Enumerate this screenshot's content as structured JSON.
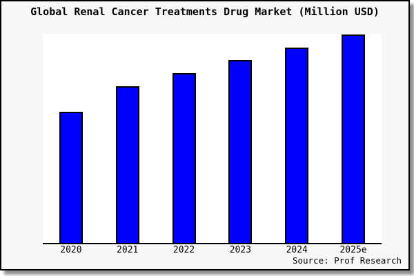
{
  "chart": {
    "title": "Global Renal Cancer Treatments Drug Market (Million USD)",
    "source_note": "Source: Prof Research"
  },
  "chart_data": {
    "type": "bar",
    "title": "Global Renal Cancer Treatments Drug Market (Million USD)",
    "categories": [
      "2020",
      "2021",
      "2022",
      "2023",
      "2024",
      "2025e"
    ],
    "values": [
      61.9,
      74.3,
      80.6,
      86.8,
      92.6,
      98.9
    ],
    "value_scale": "percent of plot height; no y-axis ticks or labels are shown in the image",
    "xlabel": "",
    "ylabel": "",
    "ylim": [
      0,
      100
    ],
    "grid": false,
    "legend": false,
    "annotations": [
      "Source: Prof Research"
    ]
  },
  "colors": {
    "frame_background": "#f7f7f7",
    "plot_background": "#ffffff",
    "bar_fill": "#0000ff",
    "bar_border": "#000000",
    "axis": "#000000",
    "text": "#000000",
    "frame_border": "#000000",
    "shadow": "#8f8f8f"
  }
}
